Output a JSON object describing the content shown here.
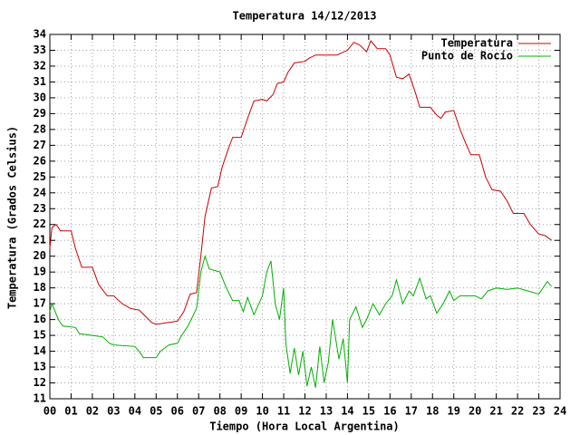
{
  "chart_data": {
    "type": "line",
    "title": "Temperatura 14/12/2013",
    "x_label": "Tiempo (Hora Local Argentina)",
    "y_label": "Temperatura (Grados Celsius)",
    "xlim": [
      0,
      24
    ],
    "xticks": [
      {
        "value": 0,
        "label": "00"
      },
      {
        "value": 1,
        "label": "01"
      },
      {
        "value": 2,
        "label": "02"
      },
      {
        "value": 3,
        "label": "03"
      },
      {
        "value": 4,
        "label": "04"
      },
      {
        "value": 5,
        "label": "05"
      },
      {
        "value": 6,
        "label": "06"
      },
      {
        "value": 7,
        "label": "07"
      },
      {
        "value": 8,
        "label": "08"
      },
      {
        "value": 9,
        "label": "09"
      },
      10,
      11,
      12,
      13,
      14,
      15,
      16,
      17,
      18,
      19,
      20,
      21,
      22,
      23,
      24
    ],
    "ylim": [
      11,
      34
    ],
    "yticks": [
      11,
      12,
      13,
      14,
      15,
      16,
      17,
      18,
      19,
      20,
      21,
      22,
      23,
      24,
      25,
      26,
      27,
      28,
      29,
      30,
      31,
      32,
      33,
      34
    ],
    "grid": true,
    "legend": "top-right",
    "series": [
      {
        "name": "Temperatura",
        "color": "#cc0000",
        "x": [
          0,
          0.1,
          0.3,
          0.5,
          1,
          1.2,
          1.5,
          2,
          2.3,
          2.7,
          3,
          3.4,
          3.8,
          4.2,
          4.5,
          4.8,
          5,
          5.5,
          6,
          6.3,
          6.6,
          6.9,
          7.1,
          7.3,
          7.6,
          7.9,
          8.1,
          8.4,
          8.6,
          9,
          9.3,
          9.6,
          10,
          10.2,
          10.5,
          10.7,
          11,
          11.2,
          11.5,
          12,
          12.2,
          12.5,
          13,
          13.5,
          14,
          14.3,
          14.6,
          14.9,
          15.1,
          15.4,
          15.8,
          16,
          16.3,
          16.6,
          16.9,
          17.2,
          17.4,
          17.9,
          18.2,
          18.4,
          18.6,
          19,
          19.3,
          19.6,
          19.8,
          20.2,
          20.5,
          20.8,
          21.2,
          21.5,
          21.8,
          22.3,
          22.6,
          23,
          23.3,
          23.6
        ],
        "values": [
          20.5,
          21.8,
          22,
          21.6,
          21.6,
          20.5,
          19.3,
          19.3,
          18.2,
          17.5,
          17.5,
          17.0,
          16.7,
          16.6,
          16.2,
          15.8,
          15.7,
          15.8,
          15.9,
          16.5,
          17.6,
          17.7,
          20,
          22.5,
          24.3,
          24.4,
          25.6,
          26.8,
          27.5,
          27.5,
          28.7,
          29.8,
          29.9,
          29.8,
          30.2,
          30.9,
          31.0,
          31.6,
          32.2,
          32.3,
          32.5,
          32.7,
          32.7,
          32.7,
          33.0,
          33.5,
          33.3,
          32.9,
          33.6,
          33.1,
          33.1,
          32.7,
          31.3,
          31.2,
          31.5,
          30.3,
          29.4,
          29.4,
          28.9,
          28.7,
          29.1,
          29.2,
          28.0,
          27.0,
          26.4,
          26.4,
          25.0,
          24.2,
          24.1,
          23.5,
          22.7,
          22.7,
          22.0,
          21.4,
          21.3,
          21.0
        ]
      },
      {
        "name": "Punto de Rocío",
        "color": "#00b000",
        "x": [
          0,
          0.1,
          0.4,
          0.6,
          1.2,
          1.4,
          2,
          2.5,
          2.8,
          3,
          4,
          4.2,
          4.4,
          5,
          5.2,
          5.6,
          6,
          6.2,
          6.5,
          6.9,
          7.1,
          7.3,
          7.5,
          8,
          8.3,
          8.6,
          8.9,
          9.1,
          9.3,
          9.6,
          10,
          10.2,
          10.4,
          10.6,
          10.8,
          11,
          11.1,
          11.3,
          11.5,
          11.7,
          11.9,
          12.1,
          12.3,
          12.5,
          12.7,
          12.9,
          13.1,
          13.3,
          13.6,
          13.8,
          14,
          14.1,
          14.4,
          14.7,
          14.9,
          15.2,
          15.5,
          15.8,
          16.1,
          16.3,
          16.6,
          16.9,
          17.1,
          17.4,
          17.7,
          17.9,
          18.2,
          18.5,
          18.8,
          19,
          19.3,
          19.6,
          20,
          20.3,
          20.6,
          21,
          21.5,
          22,
          22.5,
          23,
          23.4,
          23.6
        ],
        "values": [
          16.5,
          17.0,
          16.0,
          15.6,
          15.5,
          15.1,
          15.0,
          14.9,
          14.5,
          14.4,
          14.3,
          14.0,
          13.6,
          13.6,
          14.0,
          14.4,
          14.5,
          15.0,
          15.6,
          16.7,
          19.0,
          20.0,
          19.2,
          19.0,
          18.0,
          17.2,
          17.2,
          16.5,
          17.4,
          16.3,
          17.5,
          19.0,
          19.7,
          17.0,
          16.0,
          18.0,
          14.5,
          12.6,
          14.2,
          12.5,
          14.0,
          11.8,
          13.0,
          11.7,
          14.3,
          12.0,
          13.3,
          16.0,
          13.5,
          14.8,
          12.0,
          16.0,
          16.8,
          15.5,
          16.0,
          17.0,
          16.3,
          17.0,
          17.5,
          18.5,
          17.0,
          17.8,
          17.5,
          18.6,
          17.3,
          17.5,
          16.4,
          17.0,
          17.8,
          17.2,
          17.5,
          17.5,
          17.5,
          17.3,
          17.8,
          18.0,
          17.9,
          18.0,
          17.8,
          17.6,
          18.4,
          18.1
        ]
      }
    ]
  }
}
